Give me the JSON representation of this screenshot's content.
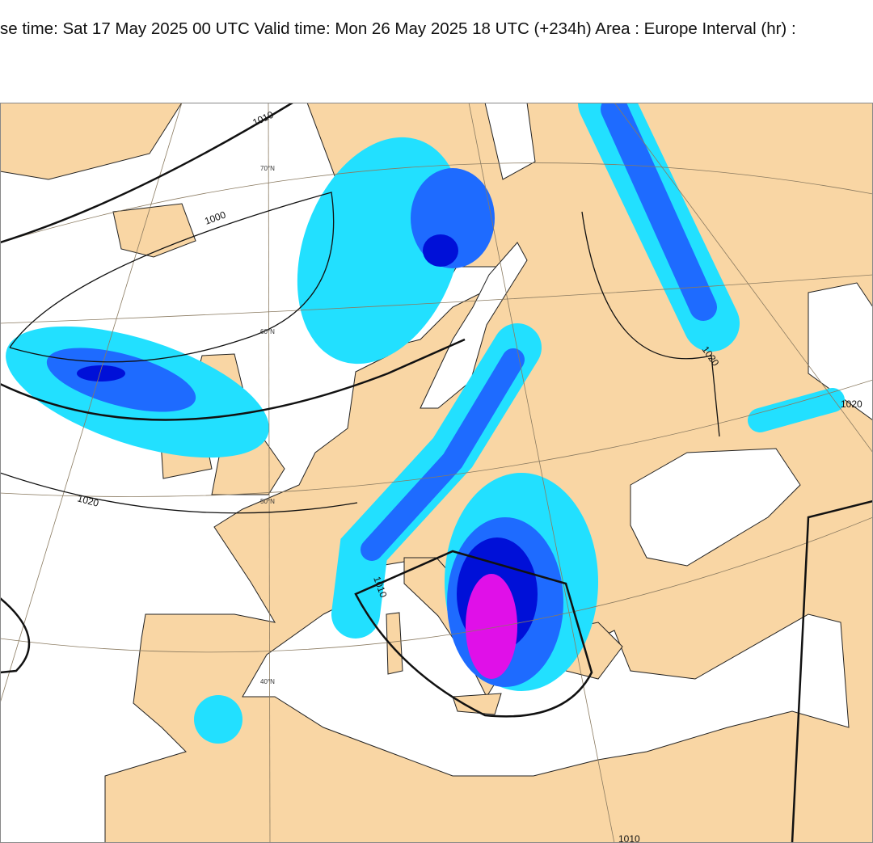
{
  "header": {
    "title": "se time: Sat 17 May 2025 00 UTC Valid time: Mon 26 May 2025 18 UTC (+234h) Area : Europe Interval (hr) :"
  },
  "map": {
    "isobar_labels": [
      "1010",
      "1000",
      "1020",
      "1010",
      "1020",
      "1020",
      "1010"
    ],
    "latitude_labels": [
      "70°N",
      "60°N",
      "50°N",
      "40°N"
    ]
  }
}
